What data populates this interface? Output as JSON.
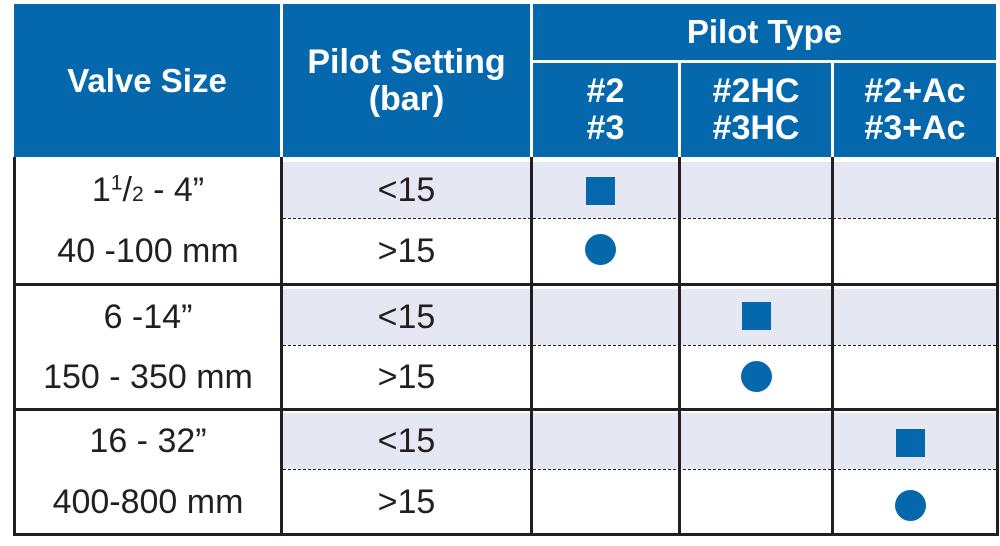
{
  "header": {
    "valve_size": "Valve Size",
    "pilot_setting": "Pilot Setting (bar)",
    "pilot_type": "Pilot Type",
    "pilot_type_columns": [
      {
        "line1": "#2",
        "line2": "#3"
      },
      {
        "line1": "#2HC",
        "line2": "#3HC"
      },
      {
        "line1": "#2+Ac",
        "line2": "#3+Ac"
      }
    ]
  },
  "groups": [
    {
      "valve_size_imperial": {
        "whole": "1",
        "num": "1",
        "den": "2",
        "rest": " - 4”"
      },
      "valve_size_metric": "40 -100 mm",
      "rows": [
        {
          "setting": "<15",
          "marker": "square",
          "pilot_column": 1
        },
        {
          "setting": ">15",
          "marker": "circle",
          "pilot_column": 1
        }
      ]
    },
    {
      "valve_size_imperial": "6 -14”",
      "valve_size_metric": "150 - 350 mm",
      "rows": [
        {
          "setting": "<15",
          "marker": "square",
          "pilot_column": 2
        },
        {
          "setting": ">15",
          "marker": "circle",
          "pilot_column": 2
        }
      ]
    },
    {
      "valve_size_imperial": "16 - 32”",
      "valve_size_metric": "400-800 mm",
      "rows": [
        {
          "setting": "<15",
          "marker": "square",
          "pilot_column": 3
        },
        {
          "setting": ">15",
          "marker": "circle",
          "pilot_column": 3
        }
      ]
    }
  ],
  "colors": {
    "header_blue": "#0568ad",
    "marker_blue": "#0568ad",
    "shade": "#e5e7f2",
    "line": "#231f20"
  }
}
